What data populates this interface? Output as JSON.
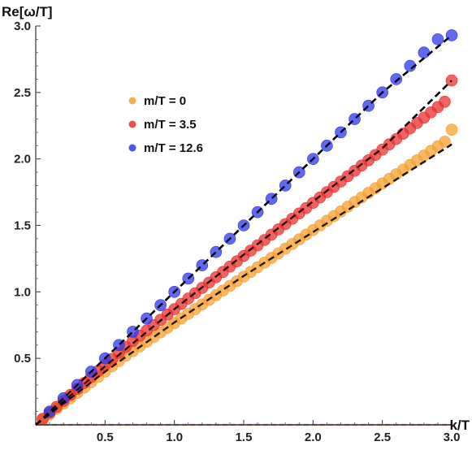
{
  "chart_data": {
    "type": "scatter",
    "xlabel": "k/T",
    "ylabel": "Re[ω/T]",
    "xlim": [
      0,
      3.0
    ],
    "ylim": [
      0,
      3.0
    ],
    "x_ticks": [
      "0.5",
      "1.0",
      "1.5",
      "2.0",
      "2.5",
      "3.0"
    ],
    "y_ticks": [
      "0.5",
      "1.0",
      "1.5",
      "2.0",
      "2.5",
      "3.0"
    ],
    "legend_position": "upper-left",
    "series": [
      {
        "name": "m/T = 0",
        "color": "#F5A030",
        "x": [
          0.05,
          0.1,
          0.15,
          0.2,
          0.25,
          0.3,
          0.35,
          0.4,
          0.45,
          0.5,
          0.55,
          0.6,
          0.65,
          0.7,
          0.75,
          0.8,
          0.85,
          0.9,
          0.95,
          1.0,
          1.05,
          1.1,
          1.15,
          1.2,
          1.25,
          1.3,
          1.35,
          1.4,
          1.45,
          1.5,
          1.55,
          1.6,
          1.65,
          1.7,
          1.75,
          1.8,
          1.85,
          1.9,
          1.95,
          2.0,
          2.05,
          2.1,
          2.15,
          2.2,
          2.25,
          2.3,
          2.35,
          2.4,
          2.45,
          2.5,
          2.55,
          2.6,
          2.65,
          2.7,
          2.75,
          2.8,
          2.85,
          2.9,
          2.95,
          3.0
        ],
        "y": [
          0.04,
          0.08,
          0.12,
          0.16,
          0.2,
          0.24,
          0.28,
          0.32,
          0.36,
          0.4,
          0.44,
          0.48,
          0.52,
          0.555,
          0.59,
          0.625,
          0.66,
          0.695,
          0.73,
          0.765,
          0.8,
          0.835,
          0.87,
          0.905,
          0.94,
          0.975,
          1.01,
          1.045,
          1.08,
          1.115,
          1.15,
          1.185,
          1.22,
          1.255,
          1.29,
          1.325,
          1.36,
          1.395,
          1.43,
          1.465,
          1.5,
          1.535,
          1.57,
          1.605,
          1.64,
          1.675,
          1.71,
          1.745,
          1.78,
          1.815,
          1.85,
          1.885,
          1.92,
          1.955,
          1.99,
          2.025,
          2.06,
          2.095,
          2.13,
          2.22
        ]
      },
      {
        "name": "m/T = 3.5",
        "color": "#E8302F",
        "x": [
          0.05,
          0.1,
          0.15,
          0.2,
          0.25,
          0.3,
          0.35,
          0.4,
          0.45,
          0.5,
          0.55,
          0.6,
          0.65,
          0.7,
          0.75,
          0.8,
          0.85,
          0.9,
          0.95,
          1.0,
          1.05,
          1.1,
          1.15,
          1.2,
          1.25,
          1.3,
          1.35,
          1.4,
          1.45,
          1.5,
          1.55,
          1.6,
          1.65,
          1.7,
          1.75,
          1.8,
          1.85,
          1.9,
          1.95,
          2.0,
          2.05,
          2.1,
          2.15,
          2.2,
          2.25,
          2.3,
          2.35,
          2.4,
          2.45,
          2.5,
          2.55,
          2.6,
          2.65,
          2.7,
          2.75,
          2.8,
          2.85,
          2.9,
          2.95,
          3.0
        ],
        "y": [
          0.045,
          0.09,
          0.135,
          0.18,
          0.225,
          0.27,
          0.315,
          0.36,
          0.405,
          0.45,
          0.495,
          0.54,
          0.585,
          0.63,
          0.67,
          0.71,
          0.75,
          0.79,
          0.83,
          0.87,
          0.91,
          0.95,
          0.99,
          1.03,
          1.07,
          1.11,
          1.15,
          1.19,
          1.23,
          1.27,
          1.31,
          1.35,
          1.39,
          1.43,
          1.47,
          1.51,
          1.55,
          1.59,
          1.63,
          1.67,
          1.71,
          1.75,
          1.79,
          1.83,
          1.87,
          1.91,
          1.95,
          1.99,
          2.03,
          2.07,
          2.11,
          2.15,
          2.19,
          2.23,
          2.27,
          2.31,
          2.35,
          2.39,
          2.43,
          2.59
        ]
      },
      {
        "name": "m/T = 12.6",
        "color": "#2E37E6",
        "x": [
          0.1,
          0.2,
          0.3,
          0.4,
          0.5,
          0.6,
          0.7,
          0.8,
          0.9,
          1.0,
          1.1,
          1.2,
          1.3,
          1.4,
          1.5,
          1.6,
          1.7,
          1.8,
          1.9,
          2.0,
          2.1,
          2.2,
          2.3,
          2.4,
          2.5,
          2.6,
          2.7,
          2.8,
          2.9,
          3.0
        ],
        "y": [
          0.1,
          0.2,
          0.3,
          0.4,
          0.5,
          0.6,
          0.7,
          0.8,
          0.9,
          1.0,
          1.1,
          1.2,
          1.3,
          1.4,
          1.5,
          1.6,
          1.7,
          1.8,
          1.9,
          2.0,
          2.1,
          2.2,
          2.3,
          2.4,
          2.5,
          2.6,
          2.7,
          2.8,
          2.9,
          2.93
        ]
      }
    ],
    "reference_lines": [
      {
        "style": "dashed",
        "color": "#000000",
        "x": [
          0,
          0.5,
          1.0,
          1.5,
          2.0,
          2.5,
          3.0
        ],
        "y": [
          0,
          0.4,
          0.77,
          1.12,
          1.45,
          1.78,
          2.11
        ]
      },
      {
        "style": "dashed",
        "color": "#000000",
        "x": [
          0,
          0.5,
          1.0,
          1.5,
          2.0,
          2.5,
          3.0
        ],
        "y": [
          0,
          0.44,
          0.87,
          1.28,
          1.68,
          2.08,
          2.59
        ]
      },
      {
        "style": "dashed",
        "color": "#000000",
        "x": [
          0,
          0.5,
          1.0,
          1.5,
          2.0,
          2.5,
          3.0
        ],
        "y": [
          0,
          0.5,
          1.0,
          1.5,
          2.0,
          2.5,
          2.93
        ]
      }
    ]
  }
}
